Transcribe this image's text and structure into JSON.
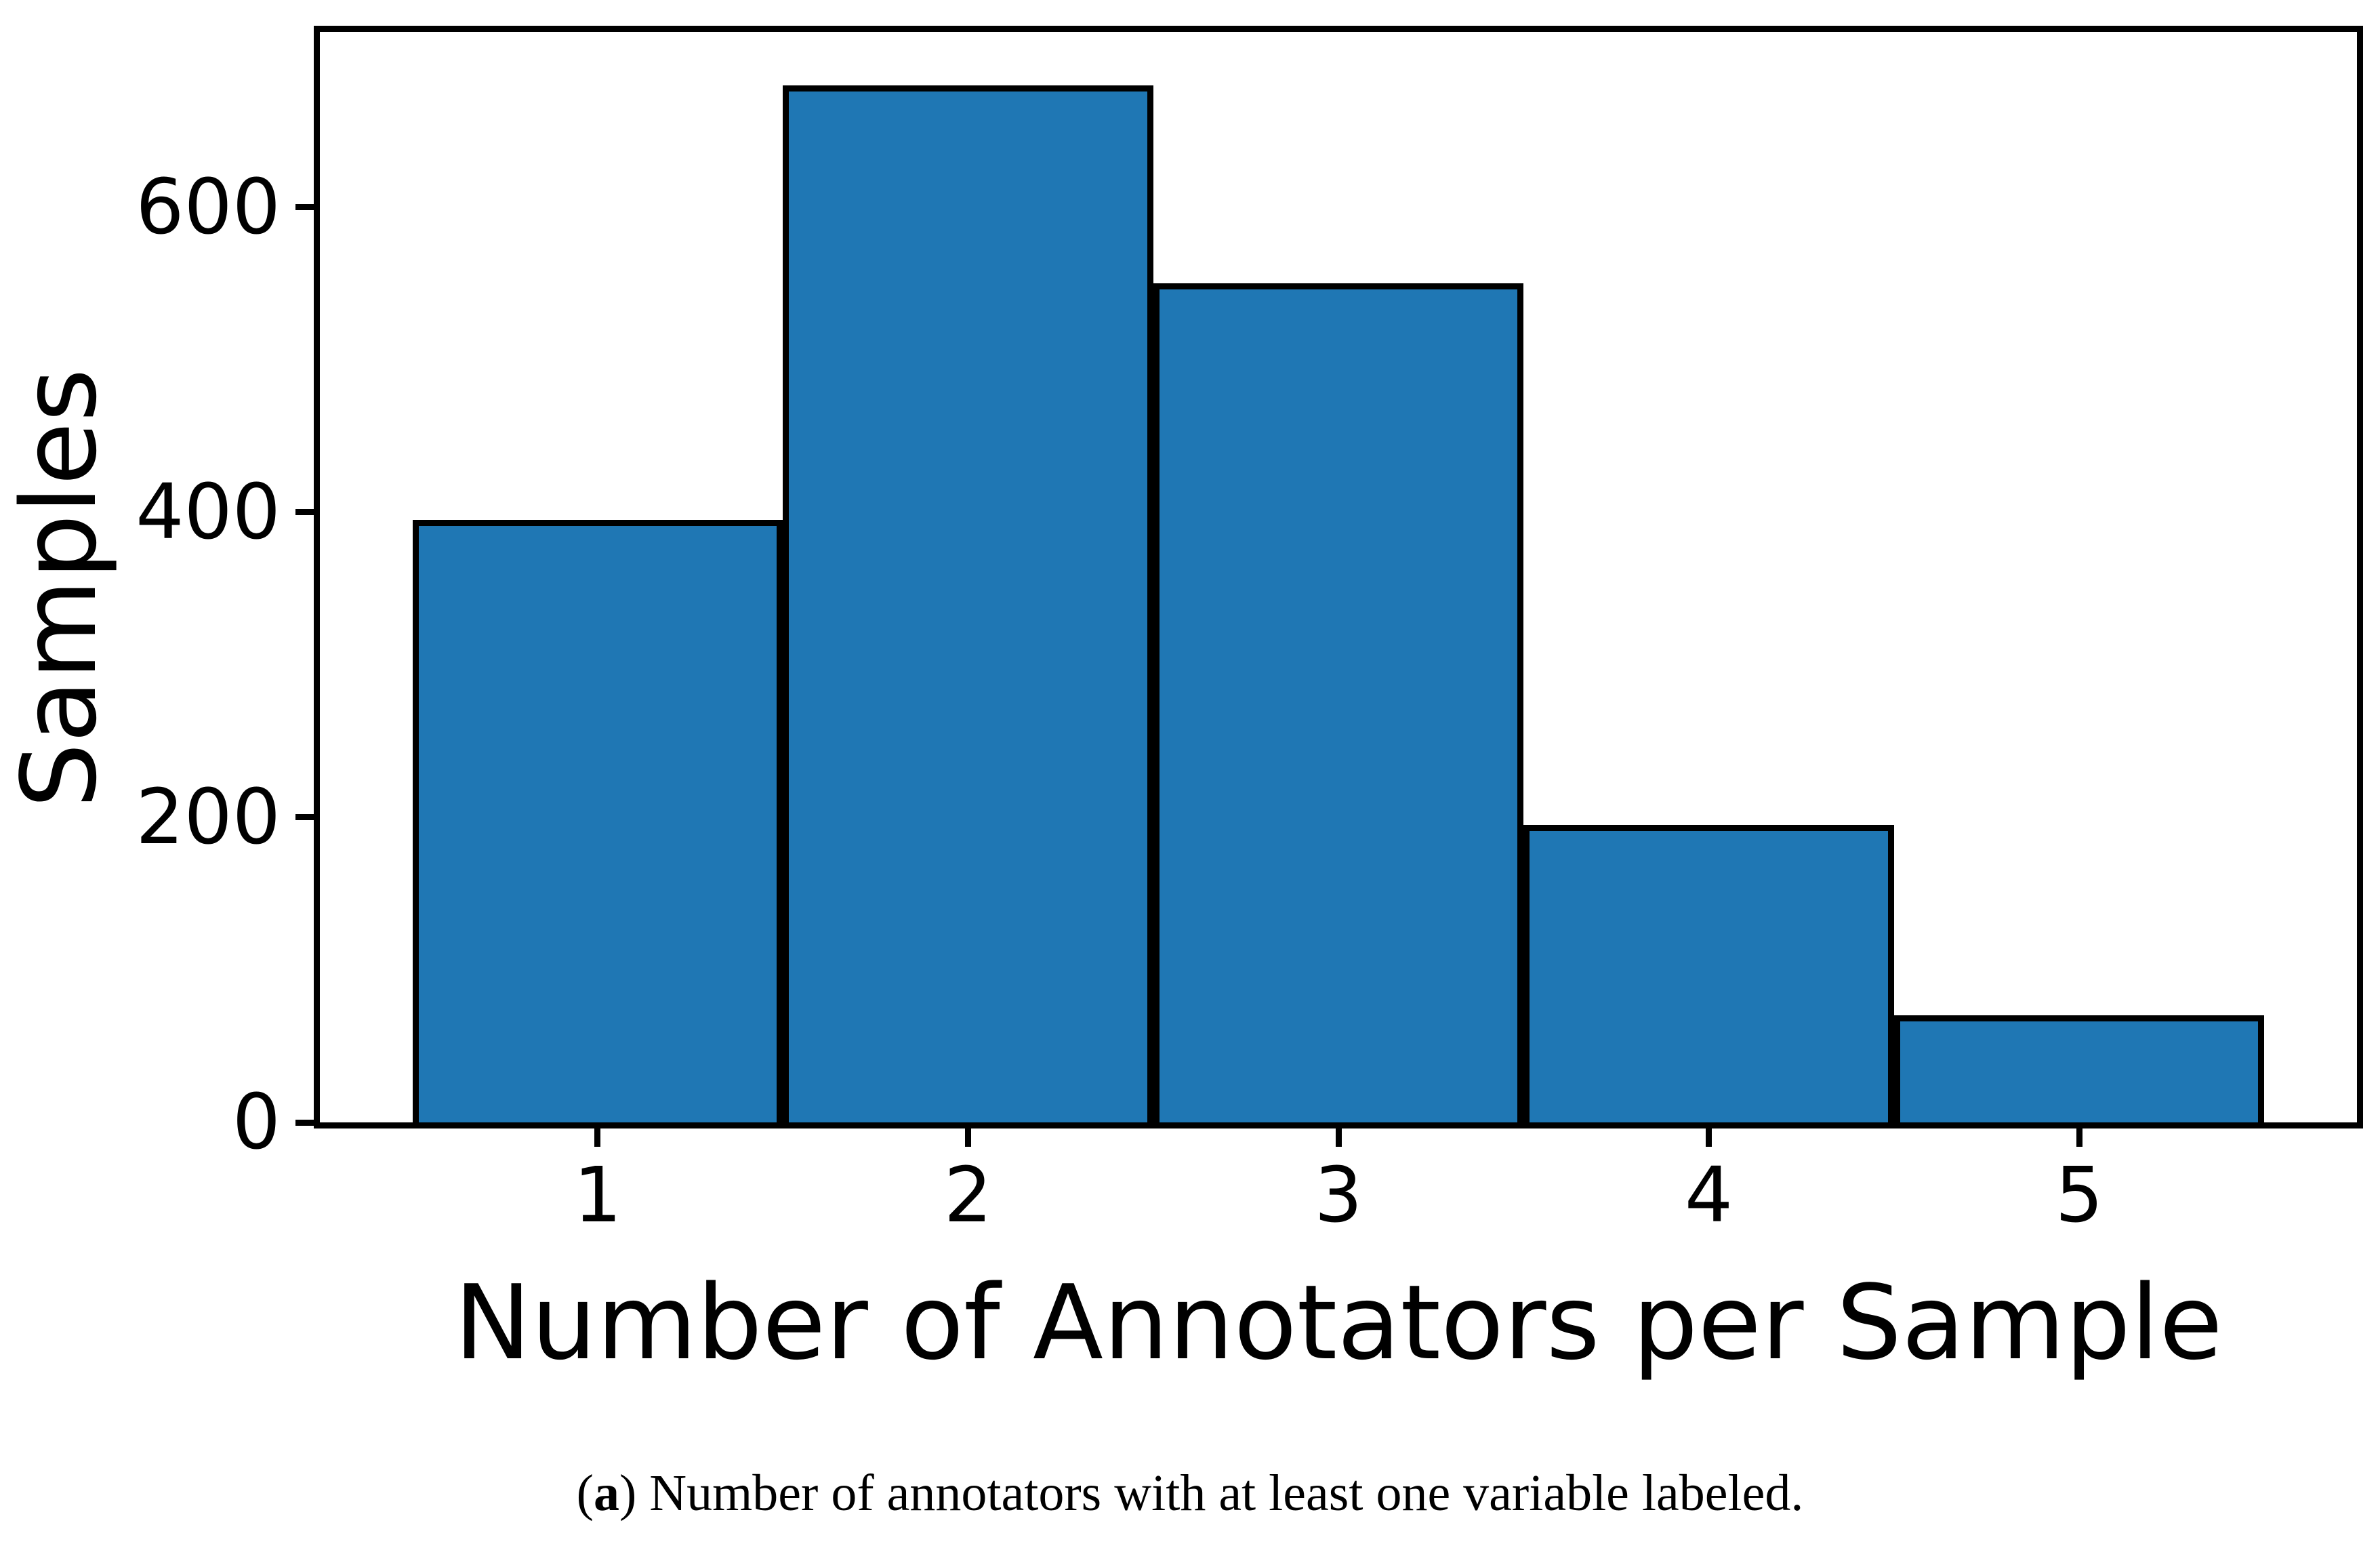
{
  "caption": {
    "prefix": "(",
    "label": "a",
    "suffix": ") ",
    "text": "Number of annotators with at least one variable labeled."
  },
  "chart_data": {
    "type": "bar",
    "title": "",
    "categories": [
      1,
      2,
      3,
      4,
      5
    ],
    "values": [
      395,
      680,
      550,
      195,
      70
    ],
    "xlabel": "Number of Annotators per Sample",
    "ylabel": "Samples",
    "xticks": [
      1,
      2,
      3,
      4,
      5
    ],
    "yticks": [
      0,
      200,
      400,
      600
    ],
    "xlim": [
      0.25,
      5.75
    ],
    "ylim": [
      0,
      715
    ],
    "bar_width": 1.0,
    "bar_color": "#1f77b4",
    "bar_edge_color": "#000000",
    "grid": false,
    "legend": null
  }
}
